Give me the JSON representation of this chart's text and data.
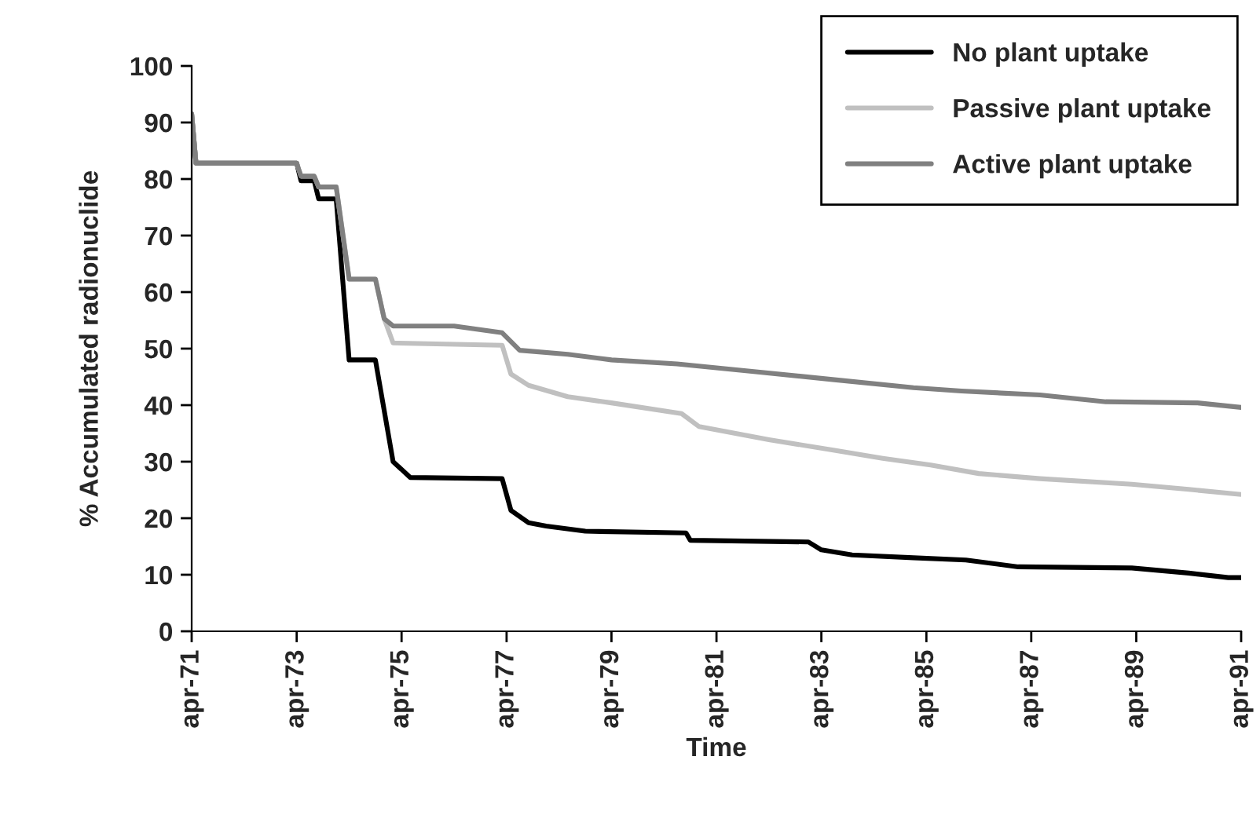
{
  "chart_data": {
    "type": "line",
    "xlabel": "Time",
    "ylabel": "% Accumulated radionuclide",
    "xlim": [
      "1971-04",
      "1991-04"
    ],
    "ylim": [
      0,
      100
    ],
    "xticks": [
      {
        "value": "1971-04",
        "label": "apr-71"
      },
      {
        "value": "1973-04",
        "label": "apr-73"
      },
      {
        "value": "1975-04",
        "label": "apr-75"
      },
      {
        "value": "1977-04",
        "label": "apr-77"
      },
      {
        "value": "1979-04",
        "label": "apr-79"
      },
      {
        "value": "1981-04",
        "label": "apr-81"
      },
      {
        "value": "1983-04",
        "label": "apr-83"
      },
      {
        "value": "1985-04",
        "label": "apr-85"
      },
      {
        "value": "1987-04",
        "label": "apr-87"
      },
      {
        "value": "1989-04",
        "label": "apr-89"
      },
      {
        "value": "1991-04",
        "label": "apr-91"
      }
    ],
    "yticks": [
      0,
      10,
      20,
      30,
      40,
      50,
      60,
      70,
      80,
      90,
      100
    ],
    "grid": false,
    "legend": "top right",
    "marker": "none",
    "line_style": "solid",
    "series": [
      {
        "name": "No plant uptake",
        "color": "#000000",
        "x": [
          "1971-04",
          "1971-05",
          "1973-04",
          "1973-05",
          "1973-08",
          "1973-09",
          "1974-01",
          "1974-04",
          "1974-10",
          "1975-02",
          "1975-06",
          "1977-03",
          "1977-05",
          "1977-09",
          "1978-01",
          "1978-10",
          "1980-09",
          "1980-10",
          "1983-01",
          "1983-04",
          "1983-11",
          "1985-01",
          "1986-01",
          "1987-01",
          "1989-03",
          "1990-04",
          "1991-01",
          "1991-04"
        ],
        "values": [
          91.5,
          82.8,
          82.8,
          79.7,
          79.7,
          76.5,
          76.5,
          48,
          48,
          30,
          27.2,
          27,
          21.4,
          19.2,
          18.6,
          17.7,
          17.4,
          16.1,
          15.8,
          14.4,
          13.5,
          13,
          12.6,
          11.4,
          11.2,
          10.3,
          9.5,
          9.5
        ]
      },
      {
        "name": "Passive plant uptake",
        "color": "#c0c0c0",
        "x": [
          "1971-04",
          "1971-05",
          "1973-04",
          "1973-05",
          "1973-08",
          "1973-09",
          "1974-01",
          "1974-04",
          "1974-10",
          "1974-12",
          "1975-02",
          "1977-03",
          "1977-05",
          "1977-09",
          "1978-06",
          "1979-04",
          "1980-08",
          "1980-12",
          "1982-04",
          "1983-07",
          "1984-06",
          "1985-05",
          "1986-04",
          "1987-06",
          "1989-03",
          "1990-04",
          "1991-04"
        ],
        "values": [
          91.5,
          82.8,
          82.8,
          80.5,
          80.5,
          78.6,
          78.6,
          62.3,
          62.3,
          55.3,
          51,
          50.6,
          45.5,
          43.5,
          41.5,
          40.4,
          38.5,
          36.2,
          33.9,
          32,
          30.6,
          29.4,
          27.9,
          27,
          26,
          25.1,
          24.2
        ]
      },
      {
        "name": "Active plant uptake",
        "color": "#808080",
        "x": [
          "1971-04",
          "1971-05",
          "1973-04",
          "1973-05",
          "1973-08",
          "1973-09",
          "1974-01",
          "1974-04",
          "1974-10",
          "1974-12",
          "1975-02",
          "1976-04",
          "1977-03",
          "1977-07",
          "1978-06",
          "1979-04",
          "1980-07",
          "1982-01",
          "1983-07",
          "1985-01",
          "1985-12",
          "1987-06",
          "1988-09",
          "1990-06",
          "1991-04"
        ],
        "values": [
          91.5,
          82.8,
          82.8,
          80.5,
          80.5,
          78.6,
          78.6,
          62.3,
          62.3,
          55.3,
          54,
          54,
          52.8,
          49.7,
          49,
          48,
          47.3,
          45.9,
          44.5,
          43.1,
          42.5,
          41.8,
          40.6,
          40.4,
          39.6
        ]
      }
    ]
  }
}
